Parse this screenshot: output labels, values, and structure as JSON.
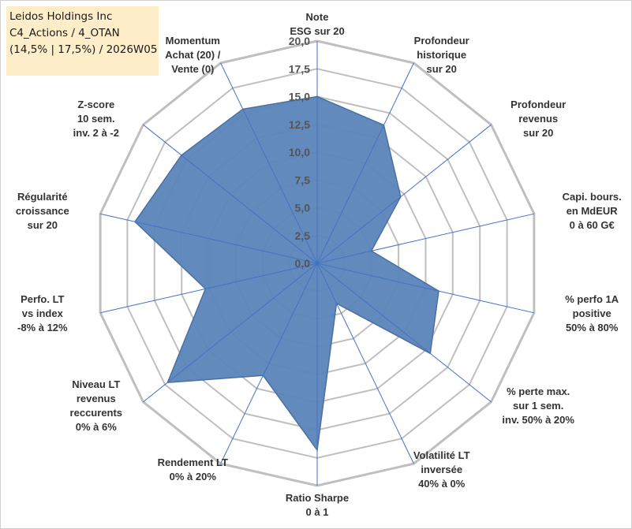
{
  "title_box": {
    "line1": "Leidos Holdings Inc",
    "line2": "C4_Actions / 4_OTAN",
    "line3": "(14,5% | 17,5%) / 2026W05"
  },
  "chart_data": {
    "type": "radar",
    "title": "Leidos Holdings Inc",
    "axis_range": [
      0,
      20
    ],
    "ticks": [
      "0,0",
      "2,5",
      "5,0",
      "7,5",
      "10,0",
      "12,5",
      "15,0",
      "17,5",
      "20,0"
    ],
    "axes": [
      {
        "label": [
          "Note",
          "ESG sur 20"
        ],
        "value": 15.0
      },
      {
        "label": [
          "Profondeur",
          "historique",
          "sur 20"
        ],
        "value": 13.8
      },
      {
        "label": [
          "Profondeur",
          "revenus",
          "sur 20"
        ],
        "value": 9.6
      },
      {
        "label": [
          "Capi. bours.",
          "en MdEUR",
          "0 à 60 G€"
        ],
        "value": 5.0
      },
      {
        "label": [
          "% perfo 1A",
          "positive",
          "50% à 80%"
        ],
        "value": 11.2
      },
      {
        "label": [
          "% perte max.",
          "sur 1 sem.",
          "inv. 50% à 20%"
        ],
        "value": 13.0
      },
      {
        "label": [
          "Volatilité LT",
          "inversée",
          "40% à 0%"
        ],
        "value": 4.0
      },
      {
        "label": [
          "Ratio Sharpe",
          "0 à 1"
        ],
        "value": 16.8
      },
      {
        "label": [
          "Rendement LT",
          "0% à 20%"
        ],
        "value": 11.2
      },
      {
        "label": [
          "Niveau LT",
          "revenus",
          "reccurents",
          "0% à 6%"
        ],
        "value": 17.2
      },
      {
        "label": [
          "Perfo. LT",
          "vs index",
          "-8% à 12%"
        ],
        "value": 10.3
      },
      {
        "label": [
          "Régularité",
          "croissance",
          "sur 20"
        ],
        "value": 16.8
      },
      {
        "label": [
          "Z-score",
          "10 sem.",
          "inv. 2 à -2"
        ],
        "value": 15.6
      },
      {
        "label": [
          "Momentum",
          "Achat (20) /",
          "Vente (0)"
        ],
        "value": 15.4
      }
    ],
    "colors": {
      "fill": "#5b84b8",
      "stroke": "#4a6fa3",
      "grid": "#bfbfbf",
      "spoke": "#4472c4"
    },
    "legend": "none",
    "grid": true
  }
}
